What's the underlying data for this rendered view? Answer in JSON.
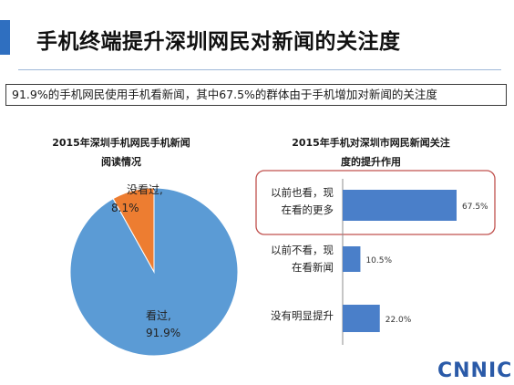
{
  "page": {
    "title": "手机终端提升深圳网民对新闻的关注度",
    "summary": "91.9%的手机网民使用手机看新闻，其中67.5%的群体由于手机增加对新闻的关注度",
    "logo": "CNNIC"
  },
  "colors": {
    "accent": "#2f6fc0",
    "pie_main": "#5b9bd5",
    "pie_slice": "#ed7d31",
    "bar": "#4a7fc9",
    "highlight_border": "#c0504d"
  },
  "chart_data": [
    {
      "type": "pie",
      "title": "2015年深圳手机网民手机新闻\n阅读情况",
      "slices": [
        {
          "label": "看过,",
          "value": 91.9,
          "value_label": "91.9%",
          "color": "#5b9bd5"
        },
        {
          "label": "没看过,",
          "value": 8.1,
          "value_label": "8.1%",
          "color": "#ed7d31"
        }
      ]
    },
    {
      "type": "bar",
      "orientation": "horizontal",
      "title": "2015年手机对深圳市网民新闻关注\n度的提升作用",
      "categories": [
        "以前也看，现\n在看的更多",
        "以前不看，现\n在看新闻",
        "没有明显提升"
      ],
      "values": [
        67.5,
        10.5,
        22.0
      ],
      "value_labels": [
        "67.5%",
        "10.5%",
        "22.0%"
      ],
      "xlim": [
        0,
        100
      ],
      "highlight_index": 0
    }
  ]
}
